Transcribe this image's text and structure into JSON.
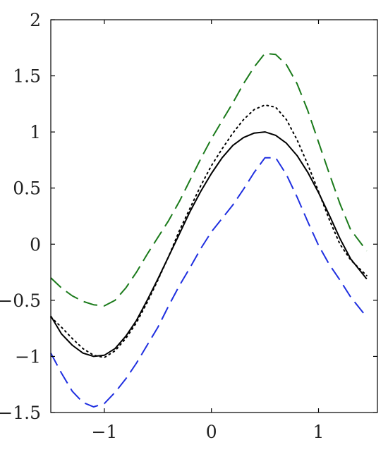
{
  "chart_data": {
    "type": "line",
    "title": "",
    "xlabel": "",
    "ylabel": "",
    "xlim": [
      -1.5,
      1.55
    ],
    "ylim": [
      -1.5,
      2.0
    ],
    "xticks": [
      -1,
      0,
      1
    ],
    "xtick_labels": [
      "−1",
      "0",
      "1"
    ],
    "yticks": [
      -1.5,
      -1,
      -0.5,
      0,
      0.5,
      1,
      1.5,
      2
    ],
    "ytick_labels": [
      "−1.5",
      "−1",
      "−0.5",
      "0",
      "0.5",
      "1",
      "1.5",
      "2"
    ],
    "grid": false,
    "legend": "none",
    "x": [
      -1.5,
      -1.4,
      -1.3,
      -1.2,
      -1.1,
      -1.0,
      -0.9,
      -0.8,
      -0.7,
      -0.6,
      -0.5,
      -0.4,
      -0.3,
      -0.2,
      -0.1,
      0.0,
      0.1,
      0.2,
      0.3,
      0.4,
      0.5,
      0.6,
      0.7,
      0.8,
      0.9,
      1.0,
      1.1,
      1.2,
      1.3,
      1.45
    ],
    "series": [
      {
        "style": "solid",
        "color": "#000000",
        "values": [
          -0.64,
          -0.8,
          -0.9,
          -0.97,
          -1.0,
          -0.99,
          -0.93,
          -0.82,
          -0.68,
          -0.5,
          -0.31,
          -0.11,
          0.09,
          0.29,
          0.47,
          0.63,
          0.77,
          0.88,
          0.95,
          0.99,
          1.0,
          0.97,
          0.9,
          0.79,
          0.64,
          0.46,
          0.26,
          0.05,
          -0.13,
          -0.31
        ]
      },
      {
        "style": "dotted",
        "color": "#000000",
        "values": [
          -0.65,
          -0.74,
          -0.84,
          -0.93,
          -0.99,
          -1.01,
          -0.95,
          -0.84,
          -0.7,
          -0.52,
          -0.32,
          -0.11,
          0.12,
          0.32,
          0.52,
          0.7,
          0.85,
          0.99,
          1.11,
          1.2,
          1.24,
          1.22,
          1.11,
          0.93,
          0.71,
          0.47,
          0.22,
          -0.0,
          -0.14,
          -0.28
        ]
      },
      {
        "style": "dashed",
        "color": "#1a7a1a",
        "values": [
          -0.3,
          -0.39,
          -0.46,
          -0.51,
          -0.54,
          -0.55,
          -0.5,
          -0.39,
          -0.25,
          -0.09,
          0.06,
          0.21,
          0.38,
          0.57,
          0.76,
          0.94,
          1.1,
          1.26,
          1.43,
          1.58,
          1.7,
          1.69,
          1.6,
          1.43,
          1.19,
          0.91,
          0.63,
          0.36,
          0.13,
          -0.06
        ]
      },
      {
        "style": "dashed",
        "color": "#1f2fe0",
        "values": [
          -0.97,
          -1.15,
          -1.31,
          -1.41,
          -1.45,
          -1.42,
          -1.32,
          -1.2,
          -1.06,
          -0.9,
          -0.74,
          -0.55,
          -0.37,
          -0.21,
          -0.04,
          0.11,
          0.23,
          0.35,
          0.49,
          0.64,
          0.77,
          0.77,
          0.62,
          0.42,
          0.2,
          -0.01,
          -0.18,
          -0.32,
          -0.47,
          -0.65
        ]
      }
    ]
  }
}
